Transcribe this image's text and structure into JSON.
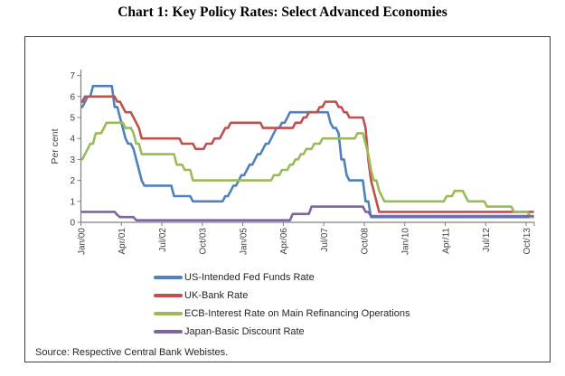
{
  "source_note": "Source: Respective Central Bank Webistes.",
  "colors": {
    "axis_line": "#7f7f7f",
    "tick_text": "#3f3f3f",
    "box_border": "#3f3f3f",
    "body_text": "#262626",
    "title_text": "#000000"
  },
  "chart_data": {
    "type": "line",
    "title": "Chart 1: Key Policy Rates: Select Advanced Economies",
    "xlabel": "",
    "ylabel": "Per cent",
    "ylim": [
      0,
      7
    ],
    "y_ticks": [
      0,
      1,
      2,
      3,
      4,
      5,
      6,
      7
    ],
    "x_tick_labels": [
      "Jan/00",
      "Apr/01",
      "Jul/02",
      "Oct/03",
      "Jan/05",
      "Apr/06",
      "Jul/07",
      "Oct/08",
      "Jan/10",
      "Apr/11",
      "Jul/12",
      "Oct/13"
    ],
    "x_tick_month_indices": [
      0,
      15,
      30,
      45,
      60,
      75,
      90,
      105,
      120,
      135,
      150,
      165
    ],
    "x_unit": "monthly, months indexed from Jan/2000 (0) to Dec/2013 (167)",
    "months_total": 168,
    "interpolation": "step-after: each point [month_index, rate_percent] is a policy-rate change; the value holds until the next change",
    "grid": false,
    "legend_position": "bottom-left",
    "series": [
      {
        "name": "US-Intended Fed Funds Rate",
        "color": "#4F81BD",
        "points": [
          [
            0,
            5.5
          ],
          [
            1,
            5.75
          ],
          [
            2,
            6.0
          ],
          [
            4,
            6.5
          ],
          [
            12,
            5.5
          ],
          [
            14,
            5.0
          ],
          [
            15,
            4.5
          ],
          [
            16,
            4.0
          ],
          [
            17,
            3.75
          ],
          [
            19,
            3.5
          ],
          [
            20,
            3.0
          ],
          [
            21,
            2.5
          ],
          [
            22,
            2.0
          ],
          [
            23,
            1.75
          ],
          [
            34,
            1.25
          ],
          [
            41,
            1.0
          ],
          [
            53,
            1.25
          ],
          [
            55,
            1.5
          ],
          [
            56,
            1.75
          ],
          [
            58,
            2.0
          ],
          [
            59,
            2.25
          ],
          [
            61,
            2.5
          ],
          [
            62,
            2.75
          ],
          [
            64,
            3.0
          ],
          [
            65,
            3.25
          ],
          [
            67,
            3.5
          ],
          [
            68,
            3.75
          ],
          [
            70,
            4.0
          ],
          [
            71,
            4.25
          ],
          [
            72,
            4.5
          ],
          [
            74,
            4.75
          ],
          [
            76,
            5.0
          ],
          [
            77,
            5.25
          ],
          [
            92,
            4.75
          ],
          [
            93,
            4.5
          ],
          [
            95,
            4.25
          ],
          [
            96,
            3.0
          ],
          [
            98,
            2.25
          ],
          [
            99,
            2.0
          ],
          [
            105,
            1.0
          ],
          [
            107,
            0.25
          ]
        ]
      },
      {
        "name": "UK-Bank Rate",
        "color": "#C0504D",
        "points": [
          [
            0,
            5.75
          ],
          [
            1,
            6.0
          ],
          [
            13,
            5.75
          ],
          [
            15,
            5.5
          ],
          [
            16,
            5.25
          ],
          [
            19,
            5.0
          ],
          [
            20,
            4.75
          ],
          [
            21,
            4.5
          ],
          [
            22,
            4.0
          ],
          [
            37,
            3.75
          ],
          [
            42,
            3.5
          ],
          [
            46,
            3.75
          ],
          [
            49,
            4.0
          ],
          [
            52,
            4.25
          ],
          [
            53,
            4.5
          ],
          [
            55,
            4.75
          ],
          [
            67,
            4.5
          ],
          [
            79,
            4.75
          ],
          [
            82,
            5.0
          ],
          [
            84,
            5.25
          ],
          [
            88,
            5.5
          ],
          [
            90,
            5.75
          ],
          [
            95,
            5.5
          ],
          [
            97,
            5.25
          ],
          [
            99,
            5.0
          ],
          [
            105,
            4.5
          ],
          [
            106,
            3.0
          ],
          [
            107,
            2.0
          ],
          [
            108,
            1.5
          ],
          [
            109,
            1.0
          ],
          [
            110,
            0.5
          ]
        ]
      },
      {
        "name": "ECB-Interest Rate on Main Refinancing Operations",
        "color": "#9BBB59",
        "points": [
          [
            0,
            3.0
          ],
          [
            1,
            3.25
          ],
          [
            2,
            3.5
          ],
          [
            3,
            3.75
          ],
          [
            5,
            4.25
          ],
          [
            8,
            4.5
          ],
          [
            9,
            4.75
          ],
          [
            16,
            4.5
          ],
          [
            19,
            4.25
          ],
          [
            20,
            3.75
          ],
          [
            22,
            3.25
          ],
          [
            35,
            2.75
          ],
          [
            38,
            2.5
          ],
          [
            41,
            2.0
          ],
          [
            71,
            2.25
          ],
          [
            74,
            2.5
          ],
          [
            77,
            2.75
          ],
          [
            79,
            3.0
          ],
          [
            81,
            3.25
          ],
          [
            83,
            3.5
          ],
          [
            86,
            3.75
          ],
          [
            89,
            4.0
          ],
          [
            102,
            4.25
          ],
          [
            105,
            3.75
          ],
          [
            106,
            3.25
          ],
          [
            107,
            2.5
          ],
          [
            108,
            2.0
          ],
          [
            110,
            1.5
          ],
          [
            111,
            1.25
          ],
          [
            112,
            1.0
          ],
          [
            135,
            1.25
          ],
          [
            138,
            1.5
          ],
          [
            142,
            1.25
          ],
          [
            143,
            1.0
          ],
          [
            150,
            0.75
          ],
          [
            160,
            0.5
          ],
          [
            166,
            0.25
          ]
        ]
      },
      {
        "name": "Japan-Basic Discount Rate",
        "color": "#8064A2",
        "points": [
          [
            0,
            0.5
          ],
          [
            13,
            0.35
          ],
          [
            14,
            0.25
          ],
          [
            20,
            0.1
          ],
          [
            78,
            0.4
          ],
          [
            85,
            0.75
          ],
          [
            105,
            0.5
          ],
          [
            107,
            0.3
          ]
        ]
      }
    ]
  }
}
